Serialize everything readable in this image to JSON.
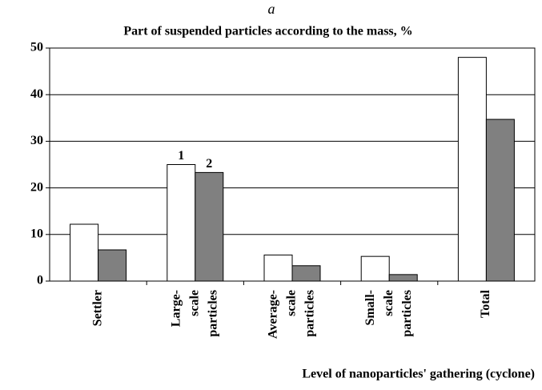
{
  "chart_data": {
    "type": "bar",
    "panel_label": "a",
    "title": "Part of suspended particles according to the mass, %",
    "x_label": "Level of nanoparticles' gathering (cyclone)",
    "categories": [
      [
        "Settler"
      ],
      [
        "Large-",
        "scale",
        "particles"
      ],
      [
        "Average-",
        "scale",
        "particles"
      ],
      [
        "Small-",
        "scale",
        "particles"
      ],
      [
        "Total"
      ]
    ],
    "series": [
      {
        "name": "1",
        "color": "#ffffff",
        "values": [
          12.2,
          25,
          5.6,
          5.3,
          48
        ]
      },
      {
        "name": "2",
        "color": "#808080",
        "values": [
          6.7,
          23.3,
          3.3,
          1.4,
          34.7
        ]
      }
    ],
    "ylim": [
      0,
      50
    ],
    "yticks": [
      0,
      10,
      20,
      30,
      40,
      50
    ],
    "grid": true
  }
}
